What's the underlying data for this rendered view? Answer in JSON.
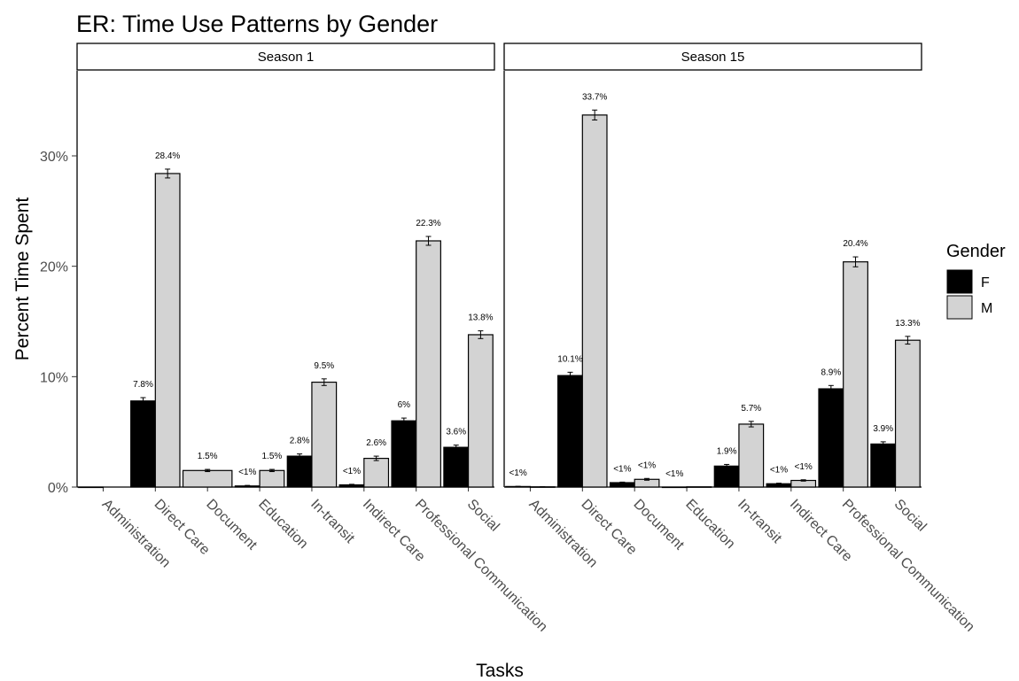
{
  "chart_data": {
    "type": "bar",
    "title": "ER: Time Use Patterns by Gender",
    "xlabel": "Tasks",
    "ylabel": "Percent Time Spent",
    "y_ticks": [
      "0%",
      "10%",
      "20%",
      "30%"
    ],
    "y_tick_values": [
      0,
      10,
      20,
      30
    ],
    "ylim": [
      0,
      37.5
    ],
    "grid": false,
    "legend": {
      "title": "Gender",
      "position": "right",
      "entries": [
        {
          "name": "F",
          "color": "#000000"
        },
        {
          "name": "M",
          "color": "#d3d3d3"
        }
      ]
    },
    "categories": [
      "Administration",
      "Direct Care",
      "Document",
      "Education",
      "In-transit",
      "Indirect Care",
      "Professional Communication",
      "Social"
    ],
    "panels": [
      {
        "strip": "Season 1",
        "series": [
          {
            "name": "F",
            "values": [
              0,
              7.8,
              null,
              0.1,
              2.8,
              0.2,
              6.0,
              3.6
            ],
            "errors": [
              0,
              0.3,
              null,
              0.05,
              0.2,
              0.05,
              0.25,
              0.2
            ],
            "labels": [
              "",
              "7.8%",
              "",
              "<1%",
              "2.8%",
              "<1%",
              "6%",
              "3.6%"
            ]
          },
          {
            "name": "M",
            "values": [
              null,
              28.4,
              1.5,
              1.5,
              9.5,
              2.6,
              22.3,
              13.8
            ],
            "errors": [
              null,
              0.4,
              0.1,
              0.1,
              0.3,
              0.2,
              0.4,
              0.35
            ],
            "labels": [
              "",
              "28.4%",
              "1.5%",
              "1.5%",
              "9.5%",
              "2.6%",
              "22.3%",
              "13.8%"
            ]
          }
        ],
        "single_bar_index": 2
      },
      {
        "strip": "Season 15",
        "series": [
          {
            "name": "F",
            "values": [
              0.05,
              10.1,
              0.4,
              0.0,
              1.9,
              0.3,
              8.9,
              3.9
            ],
            "errors": [
              0.02,
              0.3,
              0.05,
              0.0,
              0.15,
              0.05,
              0.3,
              0.2
            ],
            "labels": [
              "<1%",
              "10.1%",
              "<1%",
              "<1%",
              "1.9%",
              "<1%",
              "8.9%",
              "3.9%"
            ]
          },
          {
            "name": "M",
            "values": [
              0.02,
              33.7,
              0.7,
              0.02,
              5.7,
              0.6,
              20.4,
              13.3
            ],
            "errors": [
              0.01,
              0.45,
              0.08,
              0.0,
              0.25,
              0.06,
              0.45,
              0.35
            ],
            "labels": [
              "",
              "33.7%",
              "<1%",
              "",
              "5.7%",
              "<1%",
              "20.4%",
              "13.3%"
            ]
          }
        ]
      }
    ]
  }
}
